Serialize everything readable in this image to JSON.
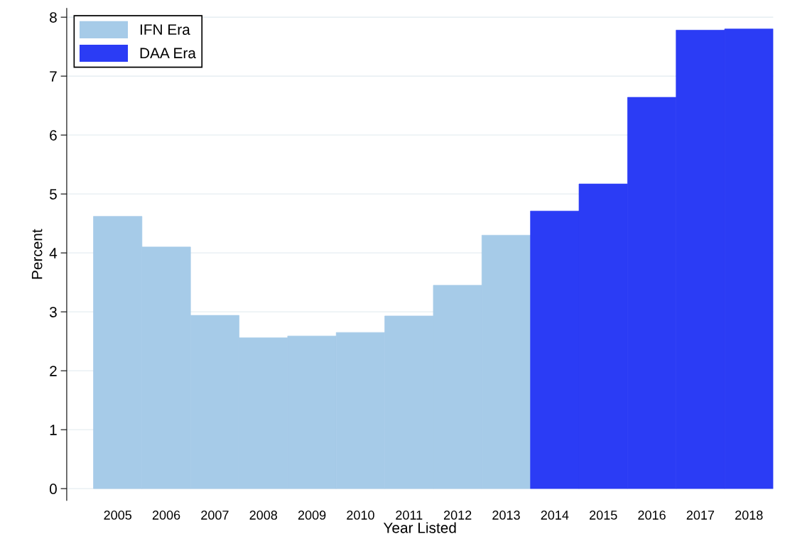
{
  "chart_data": {
    "type": "bar",
    "xlabel": "Year Listed",
    "ylabel": "Percent",
    "categories": [
      "2005",
      "2006",
      "2007",
      "2008",
      "2009",
      "2010",
      "2011",
      "2012",
      "2013",
      "2014",
      "2015",
      "2016",
      "2017",
      "2018"
    ],
    "series": [
      {
        "name": "IFN Era",
        "color": "#a6cbe8",
        "values": [
          4.62,
          4.1,
          2.94,
          2.56,
          2.59,
          2.65,
          2.93,
          3.45,
          4.3,
          null,
          null,
          null,
          null,
          null
        ]
      },
      {
        "name": "DAA Era",
        "color": "#2b3cf5",
        "values": [
          null,
          null,
          null,
          null,
          null,
          null,
          null,
          null,
          null,
          4.71,
          5.17,
          6.64,
          7.78,
          7.8
        ]
      }
    ],
    "ylim": [
      -0.2,
      8.15
    ],
    "yticks": [
      0,
      1,
      2,
      3,
      4,
      5,
      6,
      7,
      8
    ],
    "grid": "y",
    "legend": "top left"
  }
}
